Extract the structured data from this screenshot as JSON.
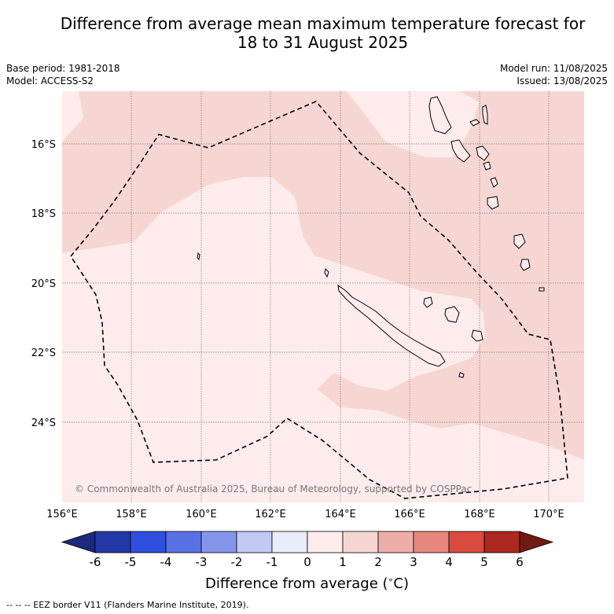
{
  "title_line1": "Difference from average mean maximum temperature forecast for",
  "title_line2": "18 to 31 August 2025",
  "base_period": "Base period: 1981-2018",
  "model": "Model: ACCESS-S2",
  "model_run": "Model run: 11/08/2025",
  "issued": "Issued: 13/08/2025",
  "copyright": "© Commonwealth of Australia 2025, Bureau of Meteorology, supported by COSPPac",
  "lat_labels": [
    "16°S",
    "18°S",
    "20°S",
    "22°S",
    "24°S"
  ],
  "lon_labels": [
    "156°E",
    "158°E",
    "160°E",
    "162°E",
    "164°E",
    "166°E",
    "168°E",
    "170°E"
  ],
  "colorbar": {
    "ticks": [
      "-6",
      "-5",
      "-4",
      "-3",
      "-2",
      "-1",
      "0",
      "1",
      "2",
      "3",
      "4",
      "5",
      "6"
    ],
    "colors": [
      "#1b2a7d",
      "#2339a8",
      "#2f4fde",
      "#5871e4",
      "#8596ea",
      "#c2c9f3",
      "#e9ecfb",
      "#fdeceb",
      "#f6d6d3",
      "#eeaea8",
      "#e6867e",
      "#d94a3f",
      "#ac2820",
      "#6e1b16"
    ],
    "title": "Difference from average ($^\\circ$C)"
  },
  "footnote": "-- -- -- EEZ border V11 (Flanders Marine Institute, 2019).",
  "map_data": {
    "lat_range": [
      -26.5,
      -14.7
    ],
    "lon_range": [
      156.0,
      171.0
    ],
    "zone_fill_colors": {
      "0 to 1": "#fdeceb",
      "1 to 2": "#f6d6d3"
    }
  }
}
